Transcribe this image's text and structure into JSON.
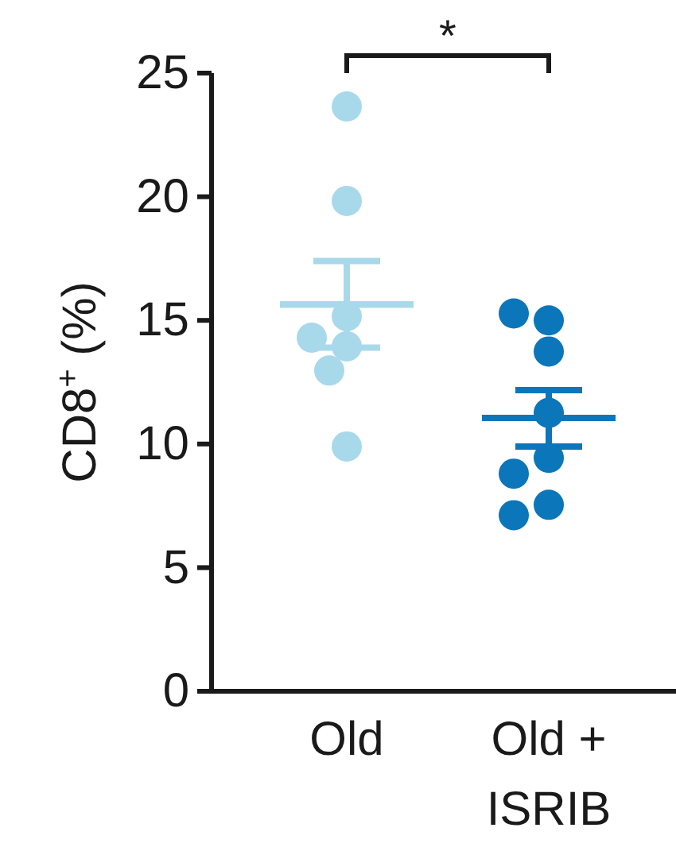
{
  "chart_data": {
    "type": "scatter",
    "ylabel": "CD8$^{+}$ (%)",
    "categories": [
      "Old",
      "Old + ISRIB"
    ],
    "series": [
      {
        "color": "#a8d9ea",
        "x": [
          "Old",
          "Old",
          "Old",
          "Old",
          "Old",
          "Old",
          "Old"
        ],
        "values": [
          23.65,
          19.83,
          15.17,
          14.3,
          13.95,
          12.97,
          9.9
        ],
        "marker": "circle"
      },
      {
        "color": "#0b76b9",
        "x": [
          "Old + ISRIB",
          "Old + ISRIB",
          "Old + ISRIB",
          "Old + ISRIB",
          "Old + ISRIB",
          "Old + ISRIB",
          "Old + ISRIB",
          "Old + ISRIB"
        ],
        "values": [
          15.0,
          15.28,
          13.74,
          11.26,
          9.44,
          8.8,
          7.54,
          7.12
        ],
        "marker": "circle"
      },
      {
        "type": "box",
        "colors": [
          "#a8d9ea",
          "#0b76b9"
        ],
        "boxes": [
          {
            "low": 13.9,
            "q1": 15.64,
            "median": 15.64,
            "q3": 15.64,
            "high": 17.4
          },
          {
            "low": 9.9,
            "q1": 11.05,
            "median": 11.05,
            "q3": 11.05,
            "high": 12.18
          }
        ]
      }
    ],
    "ylim": [
      0,
      25
    ],
    "yticks": [
      0,
      5,
      10,
      15,
      20,
      25
    ],
    "annotations": [
      "*"
    ]
  }
}
